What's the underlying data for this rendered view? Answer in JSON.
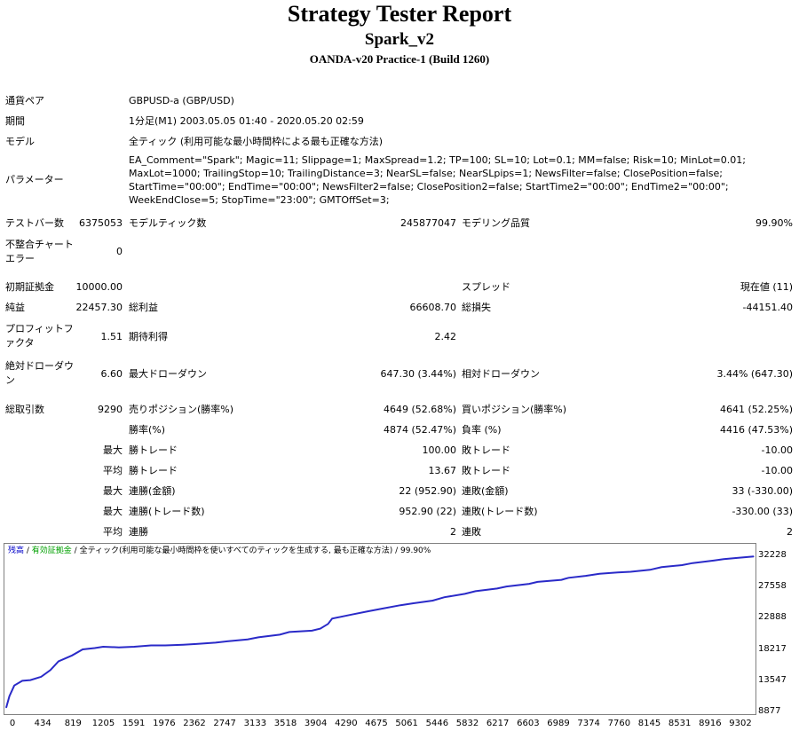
{
  "header": {
    "title": "Strategy Tester Report",
    "ea_name": "Spark_v2",
    "server": "OANDA-v20 Practice-1 (Build 1260)"
  },
  "info": {
    "symbol_label": "通貨ペア",
    "symbol_value": "GBPUSD-a (GBP/USD)",
    "period_label": "期間",
    "period_value": "1分足(M1) 2003.05.05 01:40 - 2020.05.20 02:59",
    "model_label": "モデル",
    "model_value": "全ティック (利用可能な最小時間枠による最も正確な方法)",
    "params_label": "パラメーター",
    "params_value": "EA_Comment=\"Spark\"; Magic=11; Slippage=1; MaxSpread=1.2; TP=100; SL=10; Lot=0.1; MM=false; Risk=10; MinLot=0.01; MaxLot=1000; TrailingStop=10; TrailingDistance=3; NearSL=false; NearSLpips=1; NewsFilter=false; ClosePosition=false; StartTime=\"00:00\"; EndTime=\"00:00\"; NewsFilter2=false; ClosePosition2=false; StartTime2=\"00:00\"; EndTime2=\"00:00\"; WeekEndClose=5; StopTime=\"23:00\"; GMTOffSet=3;"
  },
  "stats": {
    "bars_label": "テストバー数",
    "bars_value": "6375053",
    "ticks_label": "モデルティック数",
    "ticks_value": "245877047",
    "quality_label": "モデリング品質",
    "quality_value": "99.90%",
    "mismatch_label": "不整合チャートエラー",
    "mismatch_value": "0",
    "deposit_label": "初期証拠金",
    "deposit_value": "10000.00",
    "spread_label": "スプレッド",
    "spread_value": "現在値 (11)",
    "netprofit_label": "純益",
    "netprofit_value": "22457.30",
    "grossprofit_label": "総利益",
    "grossprofit_value": "66608.70",
    "grossloss_label": "総損失",
    "grossloss_value": "-44151.40",
    "pf_label": "プロフィットファクタ",
    "pf_value": "1.51",
    "expected_label": "期待利得",
    "expected_value": "2.42",
    "absdd_label": "絶対ドローダウン",
    "absdd_value": "6.60",
    "maxdd_label": "最大ドローダウン",
    "maxdd_value": "647.30 (3.44%)",
    "reldd_label": "相対ドローダウン",
    "reldd_value": "3.44% (647.30)",
    "total_label": "総取引数",
    "total_value": "9290",
    "short_label": "売りポジション(勝率%)",
    "short_value": "4649 (52.68%)",
    "long_label": "買いポジション(勝率%)",
    "long_value": "4641 (52.25%)",
    "winpct_label": "勝率(%)",
    "winpct_value": "4874 (52.47%)",
    "losspct_label": "負率 (%)",
    "losspct_value": "4416 (47.53%)",
    "max_label": "最大",
    "avg_label": "平均",
    "largest_win_label": "勝トレード",
    "largest_win_value": "100.00",
    "largest_loss_label": "敗トレード",
    "largest_loss_value": "-10.00",
    "avg_win_label": "勝トレード",
    "avg_win_value": "13.67",
    "avg_loss_label": "敗トレード",
    "avg_loss_value": "-10.00",
    "consec_wins_label": "連勝(金額)",
    "consec_wins_value": "22 (952.90)",
    "consec_losses_label": "連敗(金額)",
    "consec_losses_value": "33 (-330.00)",
    "consec_profit_label": "連勝(トレード数)",
    "consec_profit_value": "952.90 (22)",
    "consec_loss_label": "連敗(トレード数)",
    "consec_loss_value": "-330.00 (33)",
    "avg_consec_wins_label": "連勝",
    "avg_consec_wins_value": "2",
    "avg_consec_losses_label": "連敗",
    "avg_consec_losses_value": "2"
  },
  "chart_legend": {
    "balance": "残高",
    "sep1": " / ",
    "lot": "有効証拠金",
    "sep2": " / ",
    "model": "全ティック(利用可能な最小時間枠を使いすべてのティックを生成する, 最も正確な方法)",
    "quality": " / 99.90%"
  },
  "colors": {
    "balance": "#0000c8",
    "lot": "#00a000",
    "line": "#2a2ac8"
  },
  "chart_data": {
    "type": "line",
    "x_ticks": [
      "0",
      "434",
      "819",
      "1205",
      "1591",
      "1976",
      "2362",
      "2747",
      "3133",
      "3518",
      "3904",
      "4290",
      "4675",
      "5061",
      "5446",
      "5832",
      "6217",
      "6603",
      "6989",
      "7374",
      "7760",
      "8145",
      "8531",
      "8916",
      "9302"
    ],
    "y_ticks": [
      "32228",
      "27558",
      "22888",
      "18217",
      "13547",
      "8877"
    ],
    "ylim": [
      8877,
      32228
    ],
    "xlim": [
      0,
      9290
    ],
    "series": [
      {
        "name": "残高",
        "x": [
          0,
          40,
          100,
          200,
          300,
          434,
          550,
          650,
          819,
          950,
          1100,
          1205,
          1400,
          1591,
          1800,
          1976,
          2200,
          2362,
          2600,
          2747,
          3000,
          3133,
          3400,
          3518,
          3800,
          3904,
          4000,
          4050,
          4290,
          4500,
          4675,
          4900,
          5061,
          5300,
          5446,
          5700,
          5832,
          6100,
          6217,
          6500,
          6603,
          6900,
          6989,
          7200,
          7374,
          7600,
          7760,
          8000,
          8145,
          8400,
          8531,
          8800,
          8916,
          9100,
          9290
        ],
        "y": [
          9600,
          11300,
          12900,
          13600,
          13700,
          14200,
          15200,
          16500,
          17400,
          18300,
          18500,
          18700,
          18600,
          18700,
          18900,
          18900,
          19000,
          19100,
          19300,
          19500,
          19800,
          20100,
          20500,
          20900,
          21100,
          21400,
          22100,
          22900,
          23500,
          24000,
          24400,
          24900,
          25200,
          25600,
          26100,
          26600,
          27000,
          27400,
          27700,
          28100,
          28400,
          28700,
          29000,
          29300,
          29600,
          29800,
          29900,
          30200,
          30600,
          30900,
          31200,
          31600,
          31800,
          32000,
          32200
        ]
      }
    ]
  }
}
